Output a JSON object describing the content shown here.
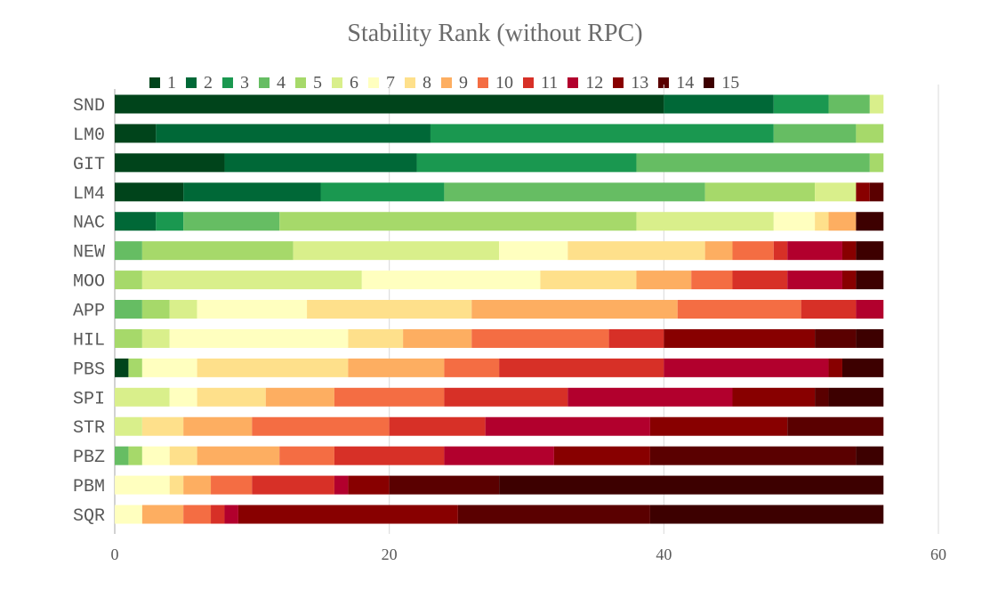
{
  "chart_data": {
    "type": "bar",
    "orientation": "horizontal",
    "stacked": true,
    "title": "Stability Rank (without RPC)",
    "xlabel": "",
    "ylabel": "",
    "xlim": [
      0,
      60
    ],
    "xticks": [
      0,
      20,
      40,
      60
    ],
    "grid": "vertical",
    "legend_position": "top",
    "categories": [
      "SND",
      "LM0",
      "GIT",
      "LM4",
      "NAC",
      "NEW",
      "MOO",
      "APP",
      "HIL",
      "PBS",
      "SPI",
      "STR",
      "PBZ",
      "PBM",
      "SQR"
    ],
    "series": [
      {
        "name": "1",
        "color": "#00441b",
        "values": [
          40,
          3,
          8,
          5,
          0,
          0,
          0,
          0,
          0,
          1,
          0,
          0,
          0,
          0,
          0
        ]
      },
      {
        "name": "2",
        "color": "#006837",
        "values": [
          8,
          20,
          14,
          10,
          3,
          0,
          0,
          0,
          0,
          0,
          0,
          0,
          0,
          0,
          0
        ]
      },
      {
        "name": "3",
        "color": "#1a9850",
        "values": [
          4,
          25,
          16,
          9,
          2,
          0,
          0,
          0,
          0,
          0,
          0,
          0,
          0,
          0,
          0
        ]
      },
      {
        "name": "4",
        "color": "#66bd63",
        "values": [
          3,
          6,
          17,
          19,
          7,
          2,
          0,
          2,
          0,
          0,
          0,
          0,
          1,
          0,
          0
        ]
      },
      {
        "name": "5",
        "color": "#a6d96a",
        "values": [
          0,
          2,
          1,
          8,
          26,
          11,
          2,
          2,
          2,
          1,
          0,
          0,
          1,
          0,
          0
        ]
      },
      {
        "name": "6",
        "color": "#d9ef8b",
        "values": [
          1,
          0,
          0,
          3,
          10,
          15,
          16,
          2,
          2,
          0,
          4,
          2,
          0,
          0,
          0
        ]
      },
      {
        "name": "7",
        "color": "#ffffbf",
        "values": [
          0,
          0,
          0,
          0,
          3,
          5,
          13,
          8,
          13,
          4,
          2,
          0,
          2,
          4,
          2
        ]
      },
      {
        "name": "8",
        "color": "#fee08b",
        "values": [
          0,
          0,
          0,
          0,
          1,
          10,
          7,
          12,
          4,
          11,
          5,
          3,
          2,
          1,
          0
        ]
      },
      {
        "name": "9",
        "color": "#fdae61",
        "values": [
          0,
          0,
          0,
          0,
          2,
          2,
          4,
          15,
          5,
          7,
          5,
          5,
          6,
          2,
          3
        ]
      },
      {
        "name": "10",
        "color": "#f46d43",
        "values": [
          0,
          0,
          0,
          0,
          0,
          3,
          3,
          9,
          10,
          4,
          8,
          10,
          4,
          3,
          2
        ]
      },
      {
        "name": "11",
        "color": "#d73027",
        "values": [
          0,
          0,
          0,
          0,
          0,
          1,
          4,
          4,
          4,
          12,
          9,
          7,
          8,
          6,
          1
        ]
      },
      {
        "name": "12",
        "color": "#b2002d",
        "values": [
          0,
          0,
          0,
          0,
          0,
          4,
          4,
          2,
          0,
          12,
          12,
          12,
          8,
          1,
          1
        ]
      },
      {
        "name": "13",
        "color": "#880000",
        "values": [
          0,
          0,
          0,
          1,
          0,
          1,
          1,
          0,
          11,
          1,
          6,
          10,
          7,
          3,
          16
        ]
      },
      {
        "name": "14",
        "color": "#5a0000",
        "values": [
          0,
          0,
          0,
          1,
          0,
          0,
          0,
          0,
          3,
          0,
          1,
          7,
          15,
          8,
          14
        ]
      },
      {
        "name": "15",
        "color": "#3d0000",
        "values": [
          0,
          0,
          0,
          0,
          2,
          2,
          2,
          0,
          2,
          3,
          4,
          0,
          2,
          28,
          17
        ]
      }
    ]
  },
  "colors": {
    "title": "#6b6b6b",
    "axis_text": "#595959",
    "gridline": "#d9d9d9"
  }
}
